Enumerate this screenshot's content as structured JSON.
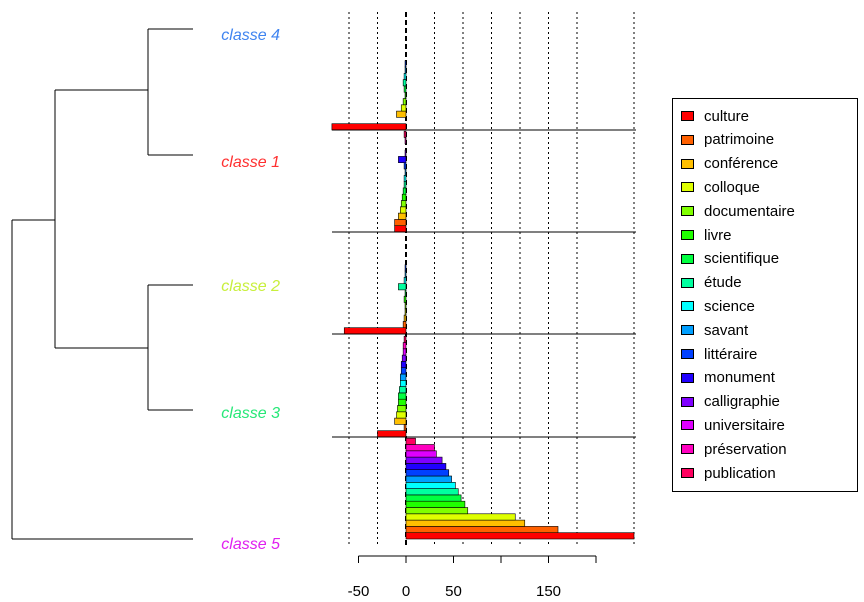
{
  "chart_data": {
    "type": "bar",
    "orientation": "horizontal",
    "xlim": [
      -75,
      240
    ],
    "xticks": [
      -50,
      0,
      50,
      150
    ],
    "gridlines_x": [
      -60,
      -30,
      0,
      30,
      60,
      90,
      120,
      150,
      180,
      240
    ],
    "legend_position": "right",
    "classes": [
      {
        "name": "classe 4",
        "color": "#3f84f0"
      },
      {
        "name": "classe 1",
        "color": "#ff3030"
      },
      {
        "name": "classe 2",
        "color": "#c8ef3c"
      },
      {
        "name": "classe 3",
        "color": "#27e878"
      },
      {
        "name": "classe 5",
        "color": "#e020f0"
      }
    ],
    "categories": [
      {
        "name": "culture",
        "color": "#ff0000"
      },
      {
        "name": "patrimoine",
        "color": "#ff6000"
      },
      {
        "name": "conférence",
        "color": "#ffbf00"
      },
      {
        "name": "colloque",
        "color": "#dfff00"
      },
      {
        "name": "documentaire",
        "color": "#80ff00"
      },
      {
        "name": "livre",
        "color": "#20ff00"
      },
      {
        "name": "scientifique",
        "color": "#00ff40"
      },
      {
        "name": "étude",
        "color": "#00ff9f"
      },
      {
        "name": "science",
        "color": "#00ffff"
      },
      {
        "name": "savant",
        "color": "#009fff"
      },
      {
        "name": "littéraire",
        "color": "#0040ff"
      },
      {
        "name": "monument",
        "color": "#2000ff"
      },
      {
        "name": "calligraphie",
        "color": "#8000ff"
      },
      {
        "name": "universitaire",
        "color": "#df00ff"
      },
      {
        "name": "préservation",
        "color": "#ff00bf"
      },
      {
        "name": "publication",
        "color": "#ff0060"
      }
    ],
    "values": [
      [
        -78,
        0,
        -10,
        -5,
        -3,
        -1,
        -2,
        -3,
        -2,
        -1,
        -1,
        0,
        0,
        0,
        0,
        0
      ],
      [
        -12,
        -12,
        -8,
        -6,
        -5,
        -4,
        -3,
        -2,
        -2,
        -1,
        -2,
        -8,
        -1,
        0,
        -1,
        -2
      ],
      [
        -65,
        -3,
        -2,
        -1,
        -1,
        -2,
        -1,
        -8,
        -2,
        -1,
        -1,
        0,
        0,
        0,
        0,
        0
      ],
      [
        -30,
        -2,
        -12,
        -10,
        -9,
        -8,
        -8,
        -7,
        -6,
        -6,
        -5,
        -5,
        -4,
        -3,
        -3,
        -2
      ],
      [
        240,
        160,
        125,
        115,
        65,
        62,
        58,
        55,
        52,
        48,
        45,
        42,
        38,
        32,
        30,
        10
      ]
    ]
  }
}
